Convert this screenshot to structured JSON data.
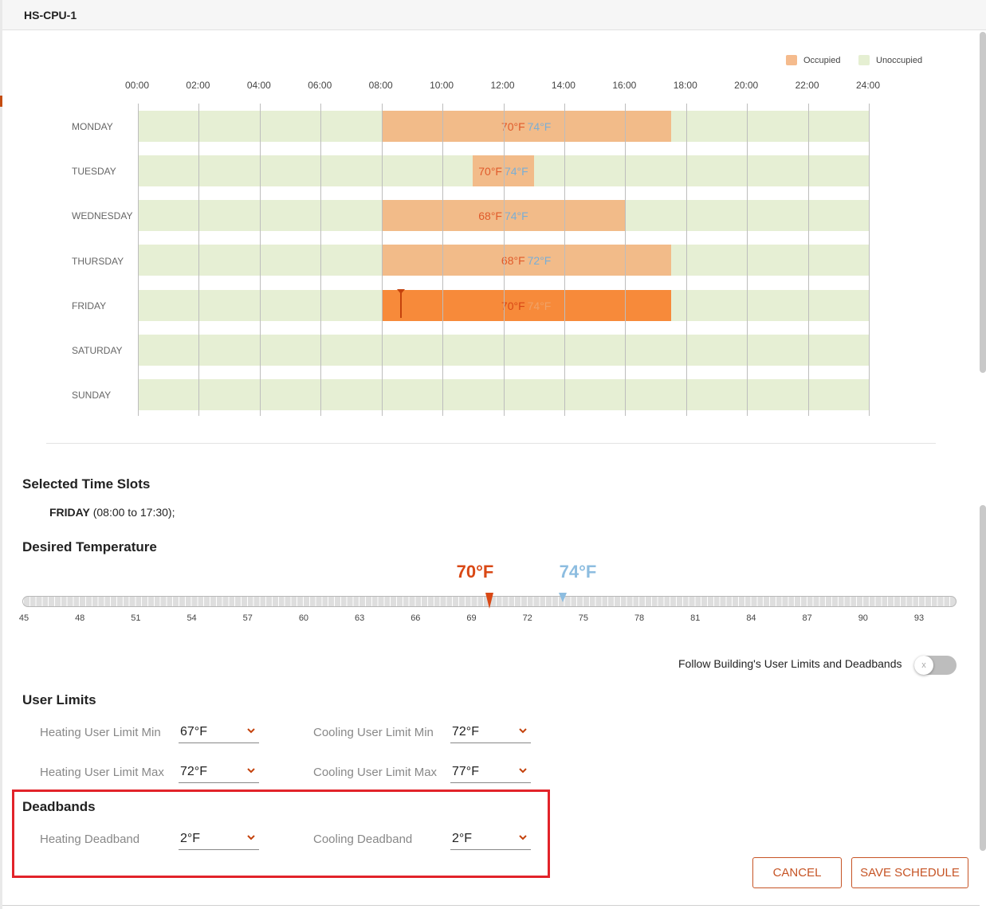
{
  "dialog": {
    "title": "HS-CPU-1"
  },
  "legend": {
    "occupied": "Occupied",
    "unoccupied": "Unoccupied",
    "occupied_color": "#f5bb8d",
    "unoccupied_color": "#e5efd2"
  },
  "hours": [
    "00:00",
    "02:00",
    "04:00",
    "06:00",
    "08:00",
    "10:00",
    "12:00",
    "14:00",
    "16:00",
    "18:00",
    "20:00",
    "22:00",
    "24:00"
  ],
  "days": [
    {
      "name": "MONDAY",
      "slot": {
        "start": "08:00",
        "end": "17:30",
        "heat": "70°F",
        "cool": "74°F",
        "selected": false
      }
    },
    {
      "name": "TUESDAY",
      "slot": {
        "start": "11:00",
        "end": "13:00",
        "heat": "70°F",
        "cool": "74°F",
        "selected": false
      }
    },
    {
      "name": "WEDNESDAY",
      "slot": {
        "start": "08:00",
        "end": "16:00",
        "heat": "68°F",
        "cool": "74°F",
        "selected": false
      }
    },
    {
      "name": "THURSDAY",
      "slot": {
        "start": "08:00",
        "end": "17:30",
        "heat": "68°F",
        "cool": "72°F",
        "selected": false
      }
    },
    {
      "name": "FRIDAY",
      "slot": {
        "start": "08:00",
        "end": "17:30",
        "heat": "70°F",
        "cool": "74°F",
        "selected": true
      }
    },
    {
      "name": "SATURDAY",
      "slot": null
    },
    {
      "name": "SUNDAY",
      "slot": null
    }
  ],
  "selected_slots": {
    "title": "Selected Time Slots",
    "day": "FRIDAY",
    "range": " (08:00 to 17:30);"
  },
  "desired_temperature": {
    "title": "Desired Temperature",
    "heat": "70°F",
    "cool": "74°F",
    "ticks": [
      "45",
      "48",
      "51",
      "54",
      "57",
      "60",
      "63",
      "66",
      "69",
      "72",
      "75",
      "78",
      "81",
      "84",
      "87",
      "90",
      "93"
    ]
  },
  "follow_building": {
    "label": "Follow Building's User Limits and Deadbands",
    "toggle_glyph": "x",
    "on": false
  },
  "user_limits": {
    "title": "User Limits",
    "heating_min": {
      "label": "Heating User Limit Min",
      "value": "67°F"
    },
    "heating_max": {
      "label": "Heating User Limit Max",
      "value": "72°F"
    },
    "cooling_min": {
      "label": "Cooling User Limit Min",
      "value": "72°F"
    },
    "cooling_max": {
      "label": "Cooling User Limit Max",
      "value": "77°F"
    }
  },
  "deadbands": {
    "title": "Deadbands",
    "heating": {
      "label": "Heating Deadband",
      "value": "2°F"
    },
    "cooling": {
      "label": "Cooling Deadband",
      "value": "2°F"
    }
  },
  "buttons": {
    "cancel": "CANCEL",
    "save": "SAVE SCHEDULE"
  },
  "colors": {
    "accent": "#c65425",
    "heat": "#d94815",
    "cool": "#8dbde0",
    "highlight": "#e2232a"
  }
}
